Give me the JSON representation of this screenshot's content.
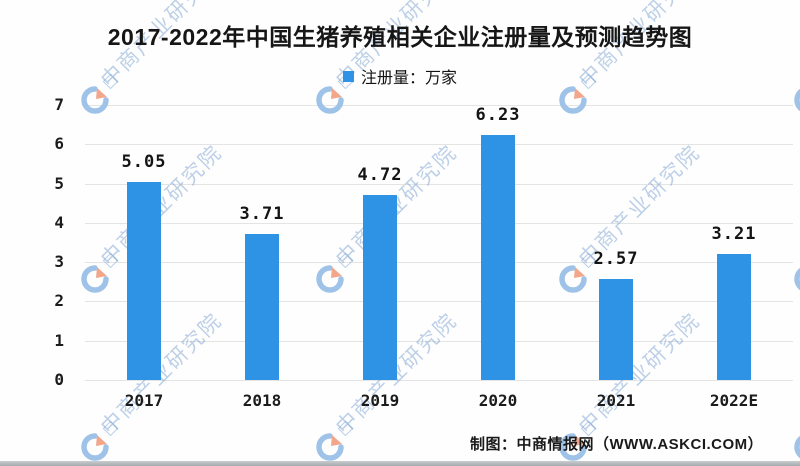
{
  "chart_data": {
    "type": "bar",
    "title": "2017-2022年中国生猪养殖相关企业注册量及预测趋势图",
    "legend_label": "注册量：万家",
    "legend_position": "top-center",
    "categories": [
      "2017",
      "2018",
      "2019",
      "2020",
      "2021",
      "2022E"
    ],
    "values": [
      5.05,
      3.71,
      4.72,
      6.23,
      2.57,
      3.21
    ],
    "value_labels": [
      "5.05",
      "3.71",
      "4.72",
      "6.23",
      "2.57",
      "3.21"
    ],
    "ylabel": "",
    "xlabel": "",
    "ylim": [
      0,
      7
    ],
    "yticks": [
      0,
      1,
      2,
      3,
      4,
      5,
      6,
      7
    ],
    "grid": true,
    "bar_color": "#2E93E5",
    "caption": "制图：中商情报网（WWW.ASKCI.COM）"
  },
  "watermark": {
    "text": "中商产业研究院",
    "text_color": "rgba(110,152,205,0.45)",
    "logo_blue": "#9fc3e8",
    "logo_orange": "#f2a78d"
  }
}
